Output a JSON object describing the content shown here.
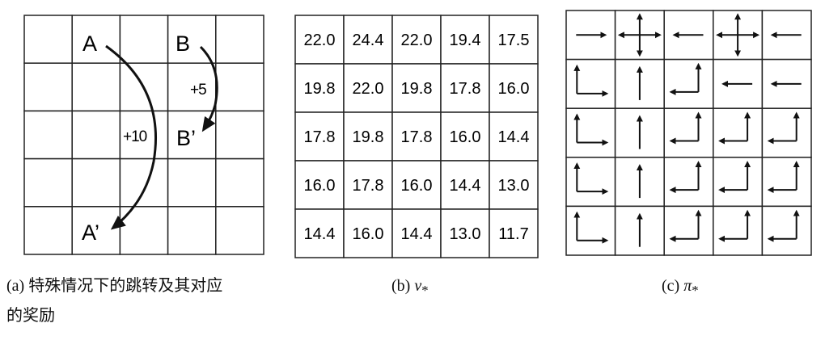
{
  "panel_a": {
    "labels": {
      "A": "A",
      "A_prime": "A’",
      "B": "B",
      "B_prime": "B’"
    },
    "rewards": {
      "A_to_A_prime": "+10",
      "B_to_B_prime": "+5"
    },
    "caption_prefix": "(a)",
    "caption_line1": "特殊情况下的跳转及其对应",
    "caption_line2": "的奖励"
  },
  "panel_b": {
    "values": [
      [
        "22.0",
        "24.4",
        "22.0",
        "19.4",
        "17.5"
      ],
      [
        "19.8",
        "22.0",
        "19.8",
        "17.8",
        "16.0"
      ],
      [
        "17.8",
        "19.8",
        "17.8",
        "16.0",
        "14.4"
      ],
      [
        "16.0",
        "17.8",
        "16.0",
        "14.4",
        "13.0"
      ],
      [
        "14.4",
        "16.0",
        "14.4",
        "13.0",
        "11.7"
      ]
    ],
    "caption_prefix": "(b)",
    "caption_symbol": "v",
    "caption_sub": "*"
  },
  "panel_c": {
    "policy": [
      [
        "right",
        "all",
        "left",
        "all",
        "left"
      ],
      [
        "up-right",
        "up",
        "up-left",
        "left",
        "left"
      ],
      [
        "up-right",
        "up",
        "up-left",
        "up-left",
        "up-left"
      ],
      [
        "up-right",
        "up",
        "up-left",
        "up-left",
        "up-left"
      ],
      [
        "up-right",
        "up",
        "up-left",
        "up-left",
        "up-left"
      ]
    ],
    "caption_prefix": "(c)",
    "caption_symbol": "π",
    "caption_sub": "*"
  }
}
